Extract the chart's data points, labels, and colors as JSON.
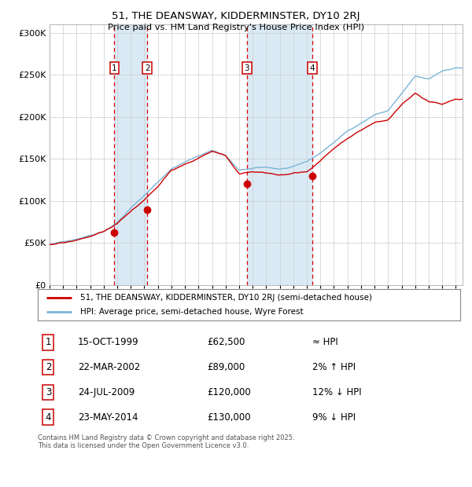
{
  "title1": "51, THE DEANSWAY, KIDDERMINSTER, DY10 2RJ",
  "title2": "Price paid vs. HM Land Registry's House Price Index (HPI)",
  "legend_line1": "51, THE DEANSWAY, KIDDERMINSTER, DY10 2RJ (semi-detached house)",
  "legend_line2": "HPI: Average price, semi-detached house, Wyre Forest",
  "footer": "Contains HM Land Registry data © Crown copyright and database right 2025.\nThis data is licensed under the Open Government Licence v3.0.",
  "purchases": [
    {
      "num": 1,
      "date": "15-OCT-1999",
      "price": 62500,
      "label": "≈ HPI",
      "year": 1999.79
    },
    {
      "num": 2,
      "date": "22-MAR-2002",
      "price": 89000,
      "label": "2% ↑ HPI",
      "year": 2002.22
    },
    {
      "num": 3,
      "date": "24-JUL-2009",
      "price": 120000,
      "label": "12% ↓ HPI",
      "year": 2009.56
    },
    {
      "num": 4,
      "date": "23-MAY-2014",
      "price": 130000,
      "label": "9% ↓ HPI",
      "year": 2014.39
    }
  ],
  "hpi_color": "#7ab4d8",
  "price_color": "#cc0000",
  "point_color": "#cc0000",
  "grid_color": "#cccccc",
  "bg_color": "#ffffff",
  "shade_color": "#daeaf5",
  "dashed_color": "#dd0000",
  "box_color": "#cc0000",
  "ylim": [
    0,
    310000
  ],
  "yticks": [
    0,
    50000,
    100000,
    150000,
    200000,
    250000,
    300000
  ],
  "xlim_start": 1995,
  "xlim_end": 2025.5,
  "hpi_keypoints_x": [
    1995,
    1996,
    1997,
    1998,
    1999,
    2000,
    2001,
    2002,
    2003,
    2004,
    2005,
    2006,
    2007,
    2008,
    2009,
    2010,
    2011,
    2012,
    2013,
    2014,
    2015,
    2016,
    2017,
    2018,
    2019,
    2020,
    2021,
    2022,
    2023,
    2024,
    2025
  ],
  "hpi_keypoints_y": [
    48000,
    51000,
    55000,
    60000,
    65000,
    76000,
    93000,
    108000,
    124000,
    140000,
    148000,
    155000,
    162000,
    156000,
    138000,
    140000,
    141000,
    139000,
    141000,
    147000,
    157000,
    170000,
    183000,
    193000,
    203000,
    208000,
    228000,
    248000,
    244000,
    254000,
    258000
  ],
  "price_keypoints_x": [
    1995,
    1996,
    1997,
    1998,
    1999,
    2000,
    2001,
    2002,
    2003,
    2004,
    2005,
    2006,
    2007,
    2008,
    2009,
    2010,
    2011,
    2012,
    2013,
    2014,
    2015,
    2016,
    2017,
    2018,
    2019,
    2020,
    2021,
    2022,
    2023,
    2024,
    2025
  ],
  "price_keypoints_y": [
    48000,
    50000,
    53000,
    57000,
    62000,
    72000,
    87000,
    100000,
    116000,
    136000,
    144000,
    151000,
    160000,
    154000,
    132000,
    133000,
    132000,
    129000,
    131000,
    133000,
    146000,
    160000,
    172000,
    183000,
    192000,
    196000,
    214000,
    228000,
    218000,
    215000,
    220000
  ],
  "noise_seed": 42,
  "noise_scale_hpi": 650,
  "noise_scale_price": 750,
  "num_points": 360
}
